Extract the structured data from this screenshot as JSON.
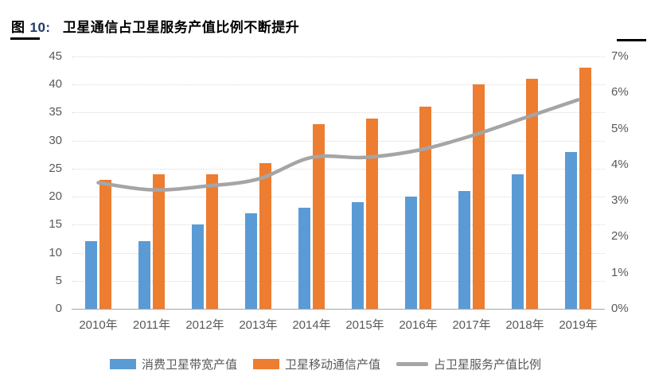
{
  "header": {
    "figure_word": "图",
    "figure_number": "10:",
    "title": "卫星通信占卫星服务产值比例不断提升"
  },
  "chart_data": {
    "type": "bar",
    "subtype": "combo-bar-line-dual-axis",
    "title": "卫星通信占卫星服务产值比例不断提升",
    "categories": [
      "2010年",
      "2011年",
      "2012年",
      "2013年",
      "2014年",
      "2015年",
      "2016年",
      "2017年",
      "2018年",
      "2019年"
    ],
    "series": [
      {
        "name": "消费卫星带宽产值",
        "type": "bar",
        "axis": "left",
        "color": "#5B9BD5",
        "values": [
          12,
          12,
          15,
          17,
          18,
          19,
          20,
          21,
          24,
          28
        ]
      },
      {
        "name": "卫星移动通信产值",
        "type": "bar",
        "axis": "left",
        "color": "#ED7D31",
        "values": [
          23,
          24,
          24,
          26,
          33,
          34,
          36,
          40,
          41,
          43
        ]
      },
      {
        "name": "占卫星服务产值比例",
        "type": "line",
        "axis": "right",
        "color": "#A5A5A5",
        "unit": "%",
        "values": [
          3.5,
          3.3,
          3.4,
          3.6,
          4.2,
          4.2,
          4.4,
          4.8,
          5.3,
          5.8
        ]
      }
    ],
    "left_axis": {
      "min": 0,
      "max": 45,
      "step": 5,
      "ticks": [
        "0",
        "5",
        "10",
        "15",
        "20",
        "25",
        "30",
        "35",
        "40",
        "45"
      ]
    },
    "right_axis": {
      "min": 0,
      "max": 7,
      "step": 1,
      "ticks": [
        "0%",
        "1%",
        "2%",
        "3%",
        "4%",
        "5%",
        "6%",
        "7%"
      ]
    },
    "legend_position": "bottom",
    "grid": true
  },
  "style_colors": {
    "bar_blue": "#5B9BD5",
    "bar_orange": "#ED7D31",
    "line_gray": "#A5A5A5",
    "axis_text": "#595959",
    "gridline": "#D9D9D9",
    "axis_line": "#A6A6A6",
    "figure_number_navy": "#1F3864",
    "title_black": "#000000"
  }
}
